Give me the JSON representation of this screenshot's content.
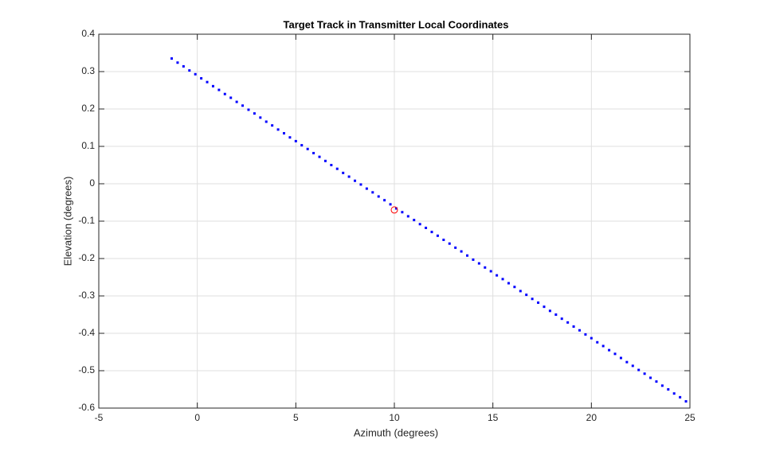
{
  "chart_data": {
    "type": "scatter",
    "title": "Target Track in Transmitter Local Coordinates",
    "xlabel": "Azimuth (degrees)",
    "ylabel": "Elevation (degrees)",
    "xlim": [
      -5,
      25
    ],
    "xticks": [
      -5,
      0,
      5,
      10,
      15,
      20,
      25
    ],
    "ylim": [
      -0.6,
      0.4
    ],
    "yticks": [
      0.4,
      0.3,
      0.2,
      0.1,
      0,
      -0.1,
      -0.2,
      -0.3,
      -0.4,
      -0.5,
      -0.6
    ],
    "grid": true,
    "series": [
      {
        "color": "#0000ff",
        "marker": "dot",
        "x": [
          -1.3,
          -1.0,
          -0.7,
          -0.4,
          -0.1,
          0.2,
          0.5,
          0.8,
          1.1,
          1.4,
          1.7,
          2.0,
          2.3,
          2.6,
          2.9,
          3.2,
          3.5,
          3.8,
          4.1,
          4.4,
          4.7,
          5.0,
          5.3,
          5.6,
          5.9,
          6.2,
          6.5,
          6.8,
          7.1,
          7.4,
          7.7,
          8.0,
          8.3,
          8.6,
          8.9,
          9.2,
          9.5,
          9.8,
          10.1,
          10.4,
          10.7,
          11.0,
          11.3,
          11.6,
          11.9,
          12.2,
          12.5,
          12.8,
          13.1,
          13.4,
          13.7,
          14.0,
          14.3,
          14.6,
          14.9,
          15.2,
          15.5,
          15.8,
          16.1,
          16.4,
          16.7,
          17.0,
          17.3,
          17.6,
          17.9,
          18.2,
          18.5,
          18.8,
          19.1,
          19.4,
          19.7,
          20.0,
          20.3,
          20.6,
          20.9,
          21.2,
          21.5,
          21.8,
          22.1,
          22.4,
          22.7,
          23.0,
          23.3,
          23.6,
          23.9,
          24.2,
          24.5,
          24.8
        ],
        "values": [
          0.335,
          0.324,
          0.314,
          0.303,
          0.293,
          0.282,
          0.272,
          0.261,
          0.251,
          0.24,
          0.23,
          0.219,
          0.209,
          0.198,
          0.188,
          0.177,
          0.166,
          0.156,
          0.145,
          0.135,
          0.124,
          0.114,
          0.103,
          0.093,
          0.082,
          0.072,
          0.061,
          0.05,
          0.04,
          0.029,
          0.019,
          0.008,
          -0.002,
          -0.013,
          -0.023,
          -0.034,
          -0.044,
          -0.055,
          -0.066,
          -0.076,
          -0.087,
          -0.097,
          -0.108,
          -0.118,
          -0.129,
          -0.139,
          -0.15,
          -0.16,
          -0.171,
          -0.181,
          -0.192,
          -0.203,
          -0.213,
          -0.224,
          -0.234,
          -0.245,
          -0.255,
          -0.266,
          -0.276,
          -0.287,
          -0.297,
          -0.308,
          -0.318,
          -0.329,
          -0.34,
          -0.35,
          -0.361,
          -0.371,
          -0.382,
          -0.392,
          -0.403,
          -0.413,
          -0.424,
          -0.434,
          -0.445,
          -0.455,
          -0.466,
          -0.477,
          -0.487,
          -0.498,
          -0.508,
          -0.519,
          -0.529,
          -0.54,
          -0.55,
          -0.561,
          -0.571,
          -0.582
        ]
      },
      {
        "color": "#ff0000",
        "marker": "circle",
        "x": [
          10
        ],
        "values": [
          -0.07
        ]
      }
    ]
  }
}
